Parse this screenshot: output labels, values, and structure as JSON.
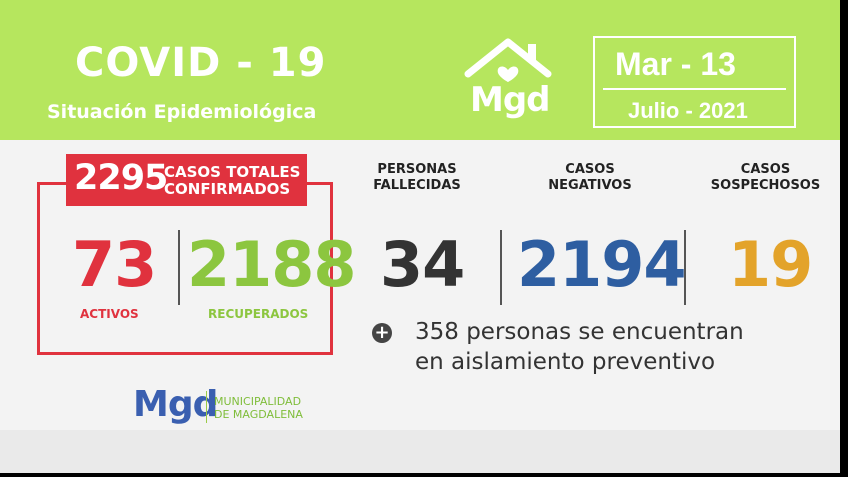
{
  "header": {
    "title": "COVID - 19",
    "subtitle": "Situación Epidemiológica",
    "logo_text": "Mgd",
    "date_day": "Mar -  13",
    "date_month": "Julio - 2021",
    "background_color": "#b6e65e"
  },
  "confirmed": {
    "total": "2295",
    "label_line1": "CASOS TOTALES",
    "label_line2": "CONFIRMADOS",
    "active_value": "73",
    "active_label": "ACTIVOS",
    "recovered_value": "2188",
    "recovered_label": "RECUPERADOS",
    "accent_color": "#e0323e",
    "recovered_color": "#8cc63f"
  },
  "stats": [
    {
      "label_line1": "PERSONAS",
      "label_line2": "FALLECIDAS",
      "value": "34",
      "color": "#333333"
    },
    {
      "label_line1": "CASOS",
      "label_line2": "NEGATIVOS",
      "value": "2194",
      "color": "#2e5ea1"
    },
    {
      "label_line1": "CASOS",
      "label_line2": "SOSPECHOSOS",
      "value": "19",
      "color": "#e3a32a"
    }
  ],
  "isolation": {
    "icon": "plus-circle-icon",
    "line1": "358 personas se encuentran",
    "line2": "en aislamiento preventivo"
  },
  "footer": {
    "logo_text": "Mgd",
    "org_line1": "MUNICIPALIDAD",
    "org_line2": "DE MAGDALENA"
  }
}
